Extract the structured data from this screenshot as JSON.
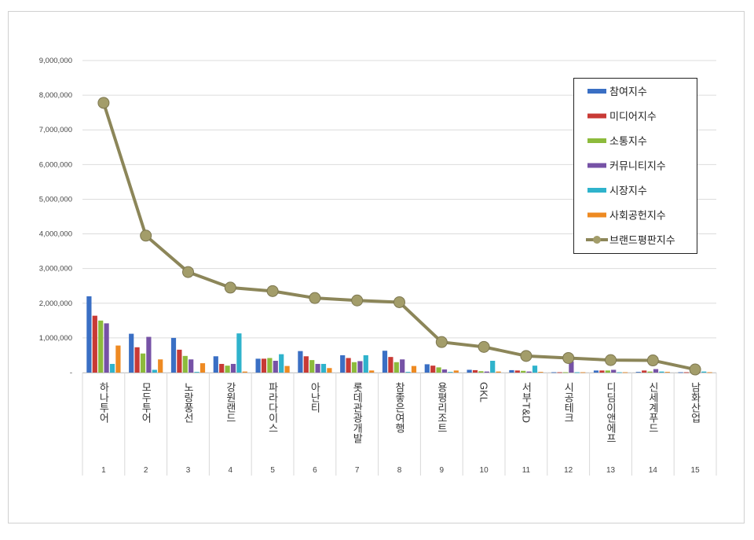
{
  "chart_data": {
    "type": "bar",
    "title": "",
    "xlabel": "",
    "ylabel": "",
    "ylim": [
      0,
      9000000
    ],
    "y_ticks": [
      "-",
      "1,000,000",
      "2,000,000",
      "3,000,000",
      "4,000,000",
      "5,000,000",
      "6,000,000",
      "7,000,000",
      "8,000,000",
      "9,000,000"
    ],
    "grid": true,
    "legend_position": "top-right",
    "ranks": [
      "1",
      "2",
      "3",
      "4",
      "5",
      "6",
      "7",
      "8",
      "9",
      "10",
      "11",
      "12",
      "13",
      "14",
      "15"
    ],
    "categories": [
      "하나투어",
      "모두투어",
      "노랑풍선",
      "강원랜드",
      "파라다이스",
      "아난티",
      "롯데관광개발",
      "참좋은여행",
      "용평리조트",
      "GKL",
      "서부T&D",
      "시공테크",
      "디딤이앤에프",
      "신세계푸드",
      "남화산업"
    ],
    "series": [
      {
        "name": "참여지수",
        "type": "bar",
        "color": "#3a6fc4",
        "values": [
          2200000,
          1120000,
          1000000,
          470000,
          400000,
          620000,
          500000,
          630000,
          240000,
          80000,
          70000,
          10000,
          60000,
          20000,
          10000
        ]
      },
      {
        "name": "미디어지수",
        "type": "bar",
        "color": "#c83a35",
        "values": [
          1640000,
          730000,
          660000,
          250000,
          400000,
          470000,
          420000,
          450000,
          200000,
          70000,
          60000,
          10000,
          60000,
          60000,
          10000
        ]
      },
      {
        "name": "소통지수",
        "type": "bar",
        "color": "#8dbb3c",
        "values": [
          1500000,
          550000,
          480000,
          200000,
          420000,
          360000,
          300000,
          300000,
          150000,
          40000,
          50000,
          10000,
          60000,
          30000,
          10000
        ]
      },
      {
        "name": "커뮤니티지수",
        "type": "bar",
        "color": "#7652a6",
        "values": [
          1420000,
          1030000,
          380000,
          250000,
          340000,
          250000,
          330000,
          380000,
          90000,
          30000,
          30000,
          320000,
          80000,
          100000,
          10000
        ]
      },
      {
        "name": "시장지수",
        "type": "bar",
        "color": "#2fb3cc",
        "values": [
          250000,
          80000,
          20000,
          1130000,
          530000,
          250000,
          500000,
          20000,
          20000,
          340000,
          200000,
          10000,
          10000,
          30000,
          30000
        ]
      },
      {
        "name": "사회공헌지수",
        "type": "bar",
        "color": "#ee8a22",
        "values": [
          780000,
          380000,
          270000,
          30000,
          190000,
          130000,
          60000,
          190000,
          60000,
          30000,
          20000,
          10000,
          10000,
          20000,
          10000
        ]
      },
      {
        "name": "브랜드평판지수",
        "type": "line",
        "color": "#8c8659",
        "values": [
          7780000,
          3950000,
          2900000,
          2450000,
          2350000,
          2150000,
          2080000,
          2030000,
          880000,
          740000,
          480000,
          420000,
          360000,
          350000,
          90000
        ]
      }
    ]
  }
}
